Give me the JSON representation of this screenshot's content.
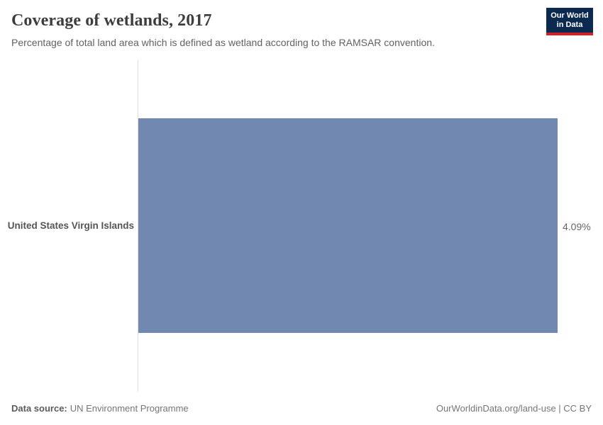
{
  "header": {
    "logo": {
      "line1": "Our World",
      "line2": "in Data",
      "bg": "#0c2a50",
      "accent": "#cc2428"
    }
  },
  "chart_data": {
    "type": "bar",
    "orientation": "horizontal",
    "title": "Coverage of wetlands, 2017",
    "subtitle": "Percentage of total land area which is defined as wetland according to the RAMSAR convention.",
    "categories": [
      "United States Virgin Islands"
    ],
    "values": [
      4.09
    ],
    "value_labels": [
      "4.09%"
    ],
    "unit": "%",
    "xlim": [
      0,
      4.09
    ],
    "grid": false,
    "legend": "none",
    "bar_color": "#7189b0",
    "axis_color": "#dedede"
  },
  "footer": {
    "source_label": "Data source:",
    "source_value": "UN Environment Programme",
    "right_text": "OurWorldinData.org/land-use | CC BY"
  }
}
